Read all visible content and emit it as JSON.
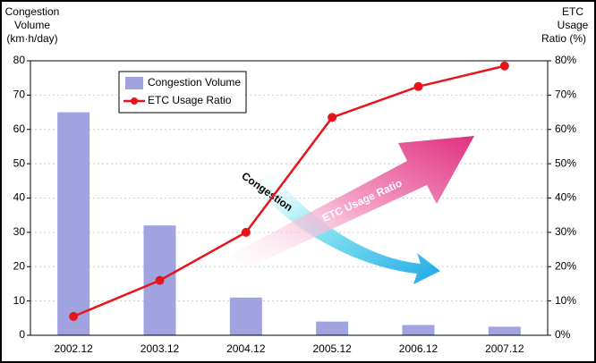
{
  "chart_data": {
    "type": "bar_line",
    "y_label": [
      "Congestion",
      "Volume",
      "(km·h/day)"
    ],
    "y2_label": [
      "ETC",
      "Usage",
      "Ratio (%)"
    ],
    "categories": [
      "2002.12",
      "2003.12",
      "2004.12",
      "2005.12",
      "2006.12",
      "2007.12"
    ],
    "series": [
      {
        "name": "Congestion Volume",
        "type": "bar",
        "color": "#a0a3e0",
        "values": [
          65,
          32,
          11,
          4,
          3,
          2.5
        ]
      },
      {
        "name": "ETC Usage Ratio",
        "type": "line",
        "axis": "y2",
        "color": "#e8141b",
        "values": [
          5.5,
          16,
          30,
          63.5,
          72.5,
          78.5
        ]
      }
    ],
    "ylim": [
      0,
      80
    ],
    "yticks": [
      0,
      10,
      20,
      30,
      40,
      50,
      60,
      70,
      80
    ],
    "y2lim": [
      0,
      80
    ],
    "y2ticks": [
      {
        "value": 0,
        "label": "0%"
      },
      {
        "value": 10,
        "label": "10%"
      },
      {
        "value": 20,
        "label": "20%"
      },
      {
        "value": 30,
        "label": "30%"
      },
      {
        "value": 40,
        "label": "40%"
      },
      {
        "value": 50,
        "label": "50%"
      },
      {
        "value": 60,
        "label": "60%"
      },
      {
        "value": 70,
        "label": "70%"
      },
      {
        "value": 80,
        "label": "80%"
      }
    ],
    "annotations": [
      "Congestion",
      "ETC Usage Ratio"
    ],
    "grid": true
  }
}
